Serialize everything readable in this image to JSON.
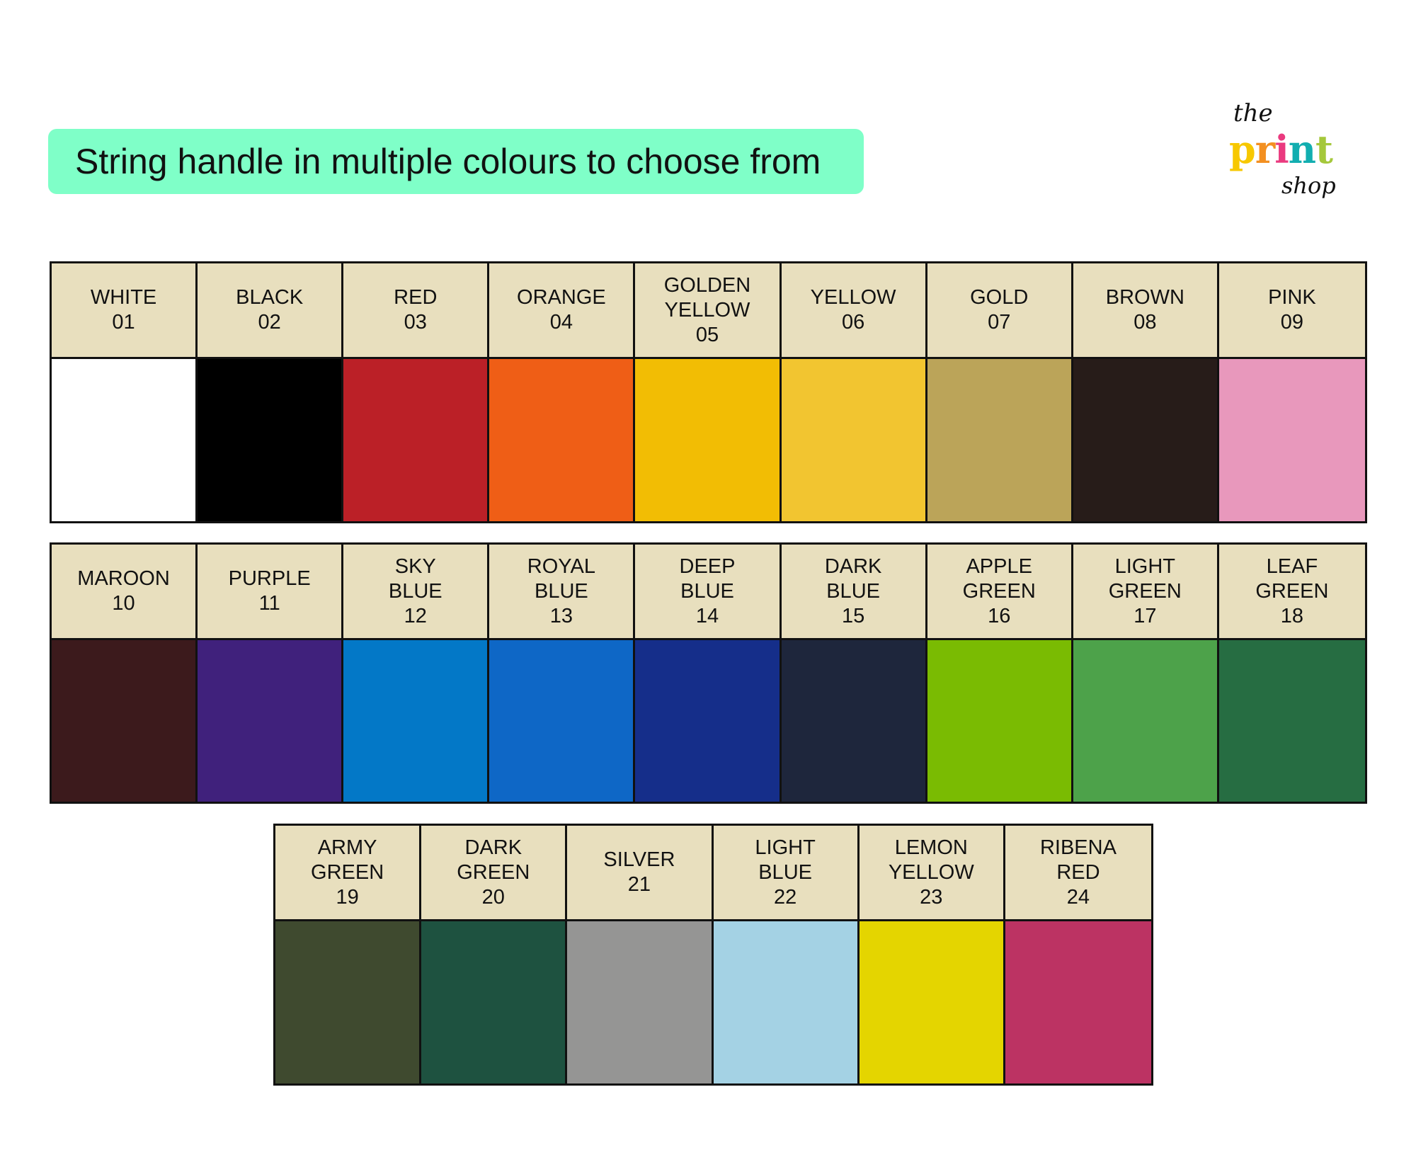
{
  "banner": {
    "title": "String handle in multiple colours to choose from",
    "color": "#7fffc8"
  },
  "logo": {
    "text_the": "the",
    "text_print": "print",
    "text_shop": "shop",
    "letter_colors": [
      "#f7c800",
      "#f39021",
      "#ea3a7f",
      "#12aeb0",
      "#a5c83b"
    ]
  },
  "colours": [
    {
      "name": [
        "WHITE"
      ],
      "code": "01",
      "hex": "#ffffff"
    },
    {
      "name": [
        "BLACK"
      ],
      "code": "02",
      "hex": "#000000"
    },
    {
      "name": [
        "RED"
      ],
      "code": "03",
      "hex": "#bb2027"
    },
    {
      "name": [
        "ORANGE"
      ],
      "code": "04",
      "hex": "#ef5e16"
    },
    {
      "name": [
        "GOLDEN",
        "YELLOW"
      ],
      "code": "05",
      "hex": "#f2bd04"
    },
    {
      "name": [
        "YELLOW"
      ],
      "code": "06",
      "hex": "#f2c530"
    },
    {
      "name": [
        "GOLD"
      ],
      "code": "07",
      "hex": "#bba459"
    },
    {
      "name": [
        "BROWN"
      ],
      "code": "08",
      "hex": "#271c19"
    },
    {
      "name": [
        "PINK"
      ],
      "code": "09",
      "hex": "#e898bc"
    },
    {
      "name": [
        "MAROON"
      ],
      "code": "10",
      "hex": "#3c1a1c"
    },
    {
      "name": [
        "PURPLE"
      ],
      "code": "11",
      "hex": "#40217c"
    },
    {
      "name": [
        "SKY",
        "BLUE"
      ],
      "code": "12",
      "hex": "#0378c7"
    },
    {
      "name": [
        "ROYAL",
        "BLUE"
      ],
      "code": "13",
      "hex": "#0e67c6"
    },
    {
      "name": [
        "DEEP",
        "BLUE"
      ],
      "code": "14",
      "hex": "#152e8a"
    },
    {
      "name": [
        "DARK",
        "BLUE"
      ],
      "code": "15",
      "hex": "#1e263c"
    },
    {
      "name": [
        "APPLE",
        "GREEN"
      ],
      "code": "16",
      "hex": "#7abb02"
    },
    {
      "name": [
        "LIGHT",
        "GREEN"
      ],
      "code": "17",
      "hex": "#4da24a"
    },
    {
      "name": [
        "LEAF",
        "GREEN"
      ],
      "code": "18",
      "hex": "#266d42"
    },
    {
      "name": [
        "ARMY",
        "GREEN"
      ],
      "code": "19",
      "hex": "#3f4a2f"
    },
    {
      "name": [
        "DARK",
        "GREEN"
      ],
      "code": "20",
      "hex": "#1e5240"
    },
    {
      "name": [
        "SILVER"
      ],
      "code": "21",
      "hex": "#959594"
    },
    {
      "name": [
        "LIGHT",
        "BLUE"
      ],
      "code": "22",
      "hex": "#a4d2e4"
    },
    {
      "name": [
        "LEMON",
        "YELLOW"
      ],
      "code": "23",
      "hex": "#e4d500"
    },
    {
      "name": [
        "RIBENA",
        "RED"
      ],
      "code": "24",
      "hex": "#bc3363"
    }
  ]
}
